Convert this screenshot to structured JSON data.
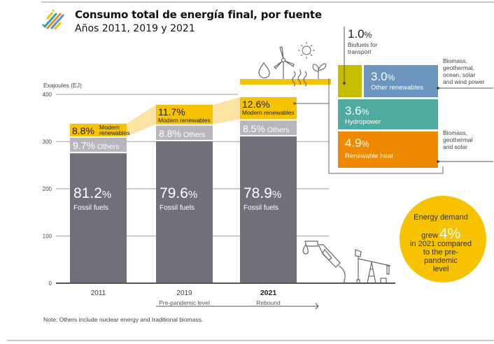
{
  "header": {
    "title": "Consumo total de energía final, por fuente",
    "subtitle": "Años 2011, 2019 y 2021",
    "logo_icon": "striped-logo-icon"
  },
  "colors": {
    "fossil": "#736f7a",
    "others": "#b8b6bc",
    "modern_renewables": "#f7c200",
    "modern_band": "#fbe3a3",
    "biofuels": "#c7bd00",
    "other_renewables": "#6b95bf",
    "hydropower": "#4faaa0",
    "renewable_heat": "#ef8a00",
    "callout": "#f7c200"
  },
  "chart_data": {
    "type": "bar",
    "stacked": true,
    "title": "Consumo total de energía final, por fuente",
    "subtitle": "Años 2011, 2019 y 2021",
    "ylabel": "Exajoules (EJ)",
    "ylim": [
      0,
      400
    ],
    "yticks": [
      0,
      100,
      200,
      300,
      400
    ],
    "grid": true,
    "categories": [
      "2011",
      "2019",
      "2021"
    ],
    "category_sublabels": [
      "",
      "Pre-pandemic level",
      "Rebound"
    ],
    "totals_ej": [
      338,
      378,
      394
    ],
    "series": [
      {
        "name": "Fossil fuels",
        "shares_pct": [
          81.2,
          79.6,
          78.9
        ]
      },
      {
        "name": "Others",
        "shares_pct": [
          9.7,
          8.8,
          8.5
        ]
      },
      {
        "name": "Modern renewables",
        "shares_pct": [
          8.8,
          11.7,
          12.6
        ]
      }
    ],
    "labels": {
      "fossil": [
        "81.2%",
        "79.6%",
        "78.9%"
      ],
      "fossil_name": "Fossil fuels",
      "others": [
        "9.7%",
        "8.8%",
        "8.5%"
      ],
      "others_name": "Others",
      "modern": [
        "8.8%",
        "11.7%",
        "12.6%"
      ],
      "modern_name": "Modern renewables",
      "modern_name_2011_line1": "Modern",
      "modern_name_2011_line2": "renewables"
    },
    "breakdown_2021_modern_renewables": [
      {
        "name": "Biofuels for transport",
        "share_pct": 1.0,
        "label": "1.0%",
        "name_line1": "Biofuels for",
        "name_line2": "transport"
      },
      {
        "name": "Other renewables",
        "share_pct": 3.0,
        "label": "3.0%",
        "note": [
          "Biomass,",
          "geothermal,",
          "ocean, solar",
          "and wind power"
        ]
      },
      {
        "name": "Hydropower",
        "share_pct": 3.6,
        "label": "3.6%"
      },
      {
        "name": "Renewable heat",
        "share_pct": 4.9,
        "label": "4.9%",
        "note": [
          "Biomass,",
          "geothermal",
          "and solar"
        ]
      }
    ],
    "annotation": {
      "line1": "Energy demand",
      "grew": "grew",
      "value": "4%",
      "line3": "in 2021 compared",
      "line4": "to the pre-",
      "line5": "pandemic",
      "line6": "level"
    },
    "note": "Note: Others include nuclear energy and traditional biomass."
  }
}
